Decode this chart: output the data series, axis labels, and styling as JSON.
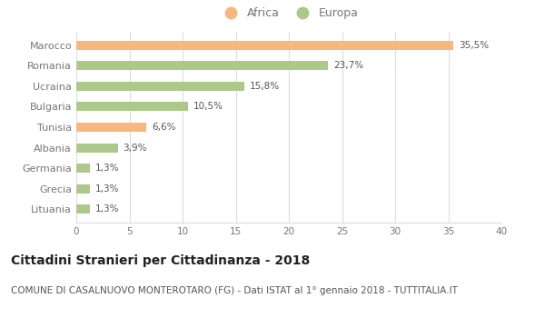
{
  "categories": [
    "Lituania",
    "Grecia",
    "Germania",
    "Albania",
    "Tunisia",
    "Bulgaria",
    "Ucraina",
    "Romania",
    "Marocco"
  ],
  "values": [
    1.3,
    1.3,
    1.3,
    3.9,
    6.6,
    10.5,
    15.8,
    23.7,
    35.5
  ],
  "labels": [
    "1,3%",
    "1,3%",
    "1,3%",
    "3,9%",
    "6,6%",
    "10,5%",
    "15,8%",
    "23,7%",
    "35,5%"
  ],
  "colors": [
    "#adc98a",
    "#adc98a",
    "#adc98a",
    "#adc98a",
    "#f5b97f",
    "#adc98a",
    "#adc98a",
    "#adc98a",
    "#f5b97f"
  ],
  "africa_color": "#f5b97f",
  "europa_color": "#adc98a",
  "xlim": [
    0,
    40
  ],
  "xticks": [
    0,
    5,
    10,
    15,
    20,
    25,
    30,
    35,
    40
  ],
  "title": "Cittadini Stranieri per Cittadinanza - 2018",
  "subtitle": "COMUNE DI CASALNUOVO MONTEROTARO (FG) - Dati ISTAT al 1° gennaio 2018 - TUTTITALIA.IT",
  "title_fontsize": 10,
  "subtitle_fontsize": 7.5,
  "bar_height": 0.45,
  "background_color": "#ffffff",
  "grid_color": "#dddddd",
  "label_color": "#555555",
  "axis_label_color": "#777777"
}
